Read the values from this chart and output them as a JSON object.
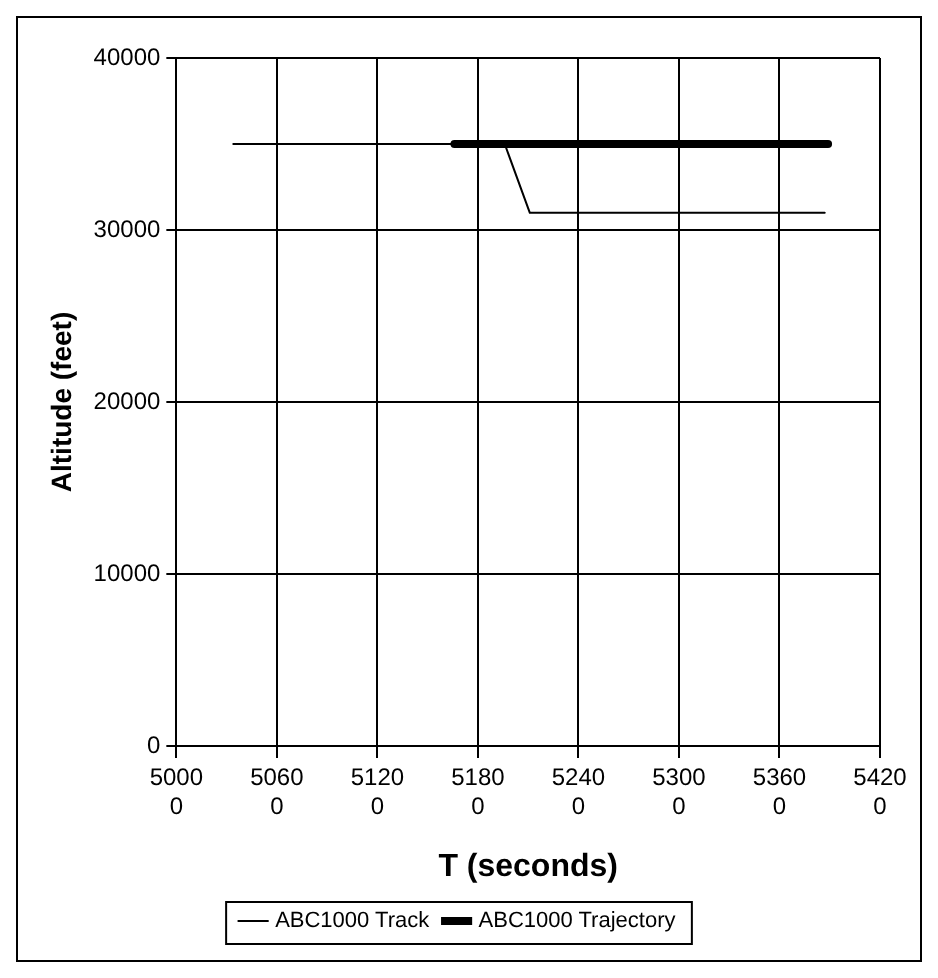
{
  "chart_data": {
    "type": "line",
    "xlabel": "T (seconds)",
    "ylabel": "Altitude (feet)",
    "xlim": [
      50000,
      54200
    ],
    "xticks": [
      50000,
      50600,
      51200,
      51800,
      52400,
      53000,
      53600,
      54200
    ],
    "ylim": [
      0,
      40000
    ],
    "yticks": [
      0,
      10000,
      20000,
      30000,
      40000
    ],
    "series": [
      {
        "name": "ABC1000 Track",
        "color": "#000000",
        "x": [
          50340,
          51960,
          52110,
          53870
        ],
        "values": [
          35000,
          35000,
          31000,
          31000
        ]
      },
      {
        "name": "ABC1000 Trajectory",
        "color": "#000000",
        "x": [
          51660,
          53890
        ],
        "values": [
          35000,
          35000
        ]
      }
    ],
    "grid": true,
    "legend": "bottom",
    "marker": "none",
    "line_style": "solid"
  }
}
